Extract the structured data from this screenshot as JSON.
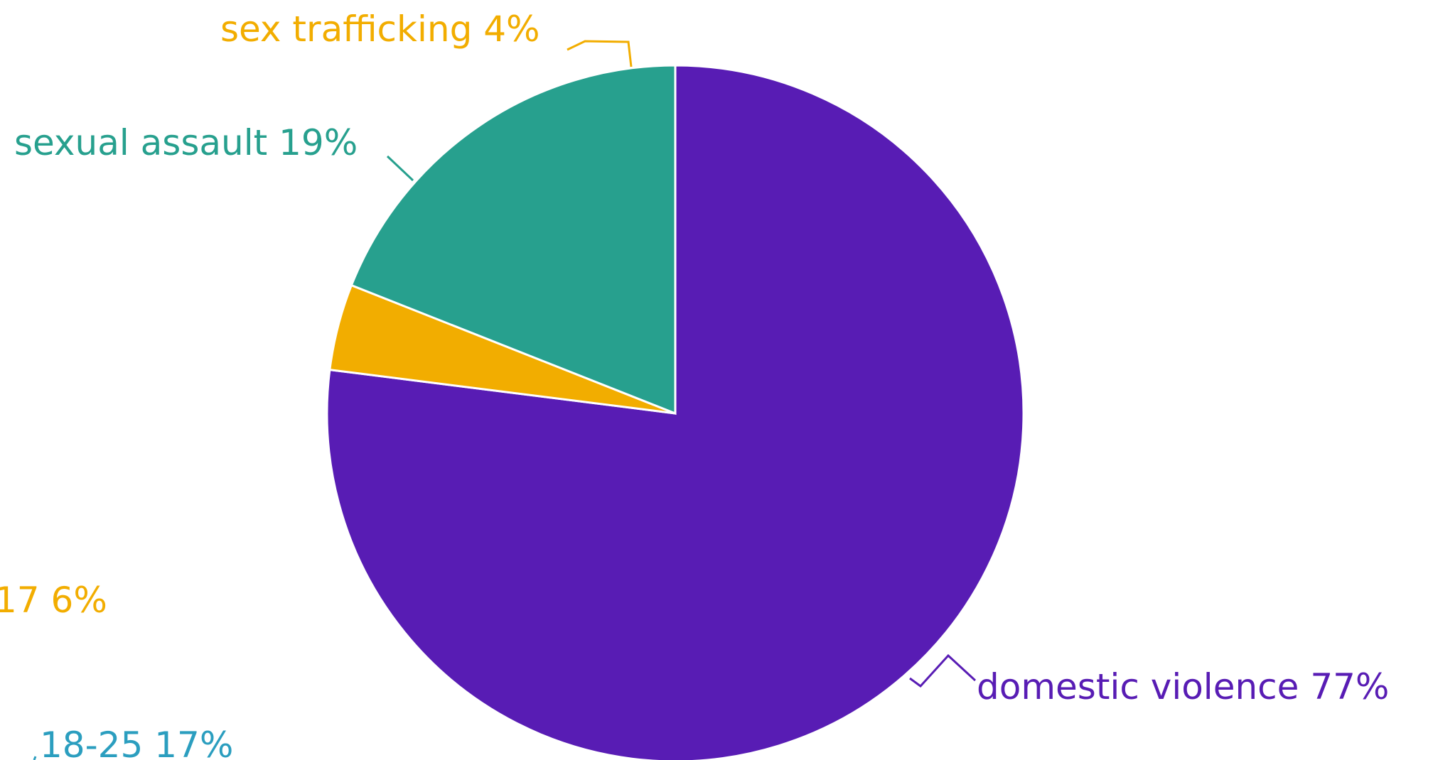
{
  "colors": {
    "domestic_violence": "#581cb4",
    "sexual_assault": "#27a08e",
    "sex_trafficking": "#f2ad00",
    "age_teal": "#2b9ebf"
  },
  "chart_data": [
    {
      "type": "pie",
      "start_angle_deg": 0,
      "direction": "clockwise",
      "slices": [
        {
          "label": "domestic violence",
          "value": 77,
          "percent_text": "77%",
          "color": "#581cb4"
        },
        {
          "label": "sex trafficking",
          "value": 4,
          "percent_text": "4%",
          "color": "#f2ad00"
        },
        {
          "label": "sexual assault",
          "value": 19,
          "percent_text": "19%",
          "color": "#27a08e"
        }
      ]
    },
    {
      "type": "pie",
      "note": "second pie mostly cropped; only labels visible",
      "slices": [
        {
          "label": "17",
          "value": 6,
          "percent_text": "6%",
          "color": "#f2ad00"
        },
        {
          "label": "18-25",
          "value": 17,
          "percent_text": "17%",
          "color": "#2b9ebf"
        }
      ]
    }
  ]
}
